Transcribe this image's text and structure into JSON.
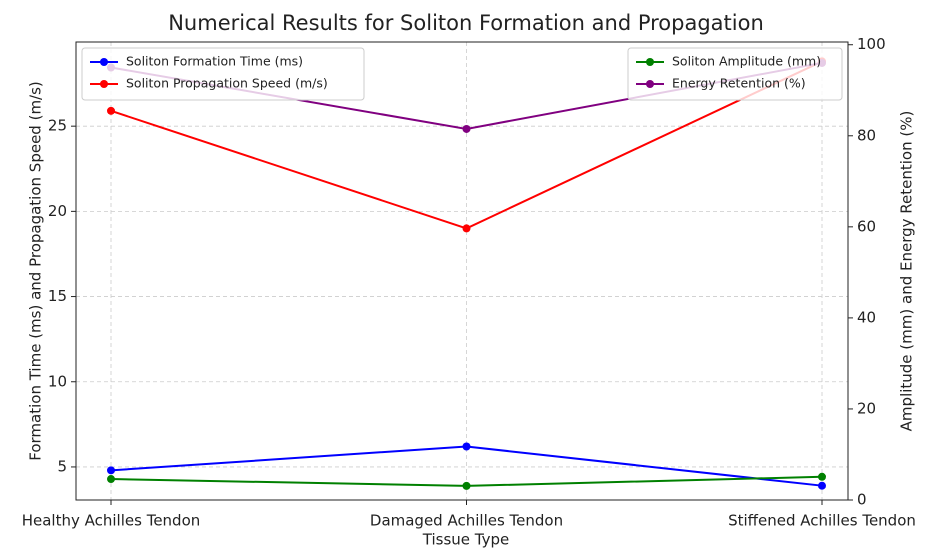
{
  "chart_data": {
    "type": "line",
    "title": "Numerical Results for Soliton Formation and Propagation",
    "x_label": "Tissue Type",
    "y_label": "Formation Time (ms) and Propagation Speed (m/s)",
    "y2_label": "Amplitude (mm) and Energy Retention (%)",
    "categories": [
      "Healthy Achilles Tendon",
      "Damaged Achilles Tendon",
      "Stiffened Achilles Tendon"
    ],
    "series": [
      {
        "name": "Soliton Formation Time (ms)",
        "color": "#0000ff",
        "values": [
          4.8,
          6.2,
          3.9
        ]
      },
      {
        "name": "Soliton Propagation Speed (m/s)",
        "color": "#ff0000",
        "values": [
          25.9,
          19.0,
          28.8
        ]
      },
      {
        "name": "Soliton Amplitude (mm)",
        "color": "#008000",
        "values": [
          4.6,
          3.1,
          5.1
        ],
        "axis": "y2"
      },
      {
        "name": "Energy Retention (%)",
        "color": "#800080",
        "values": [
          95,
          81.5,
          96
        ],
        "axis": "y2"
      }
    ],
    "ylim": [
      3.06,
      29.94
    ],
    "yticks": [
      5,
      10,
      15,
      20,
      25
    ],
    "y2lim": [
      0,
      100.6
    ],
    "y2ticks": [
      0,
      20,
      40,
      60,
      80,
      100
    ],
    "grid": true,
    "legend": [
      "upper left",
      "upper right"
    ]
  }
}
